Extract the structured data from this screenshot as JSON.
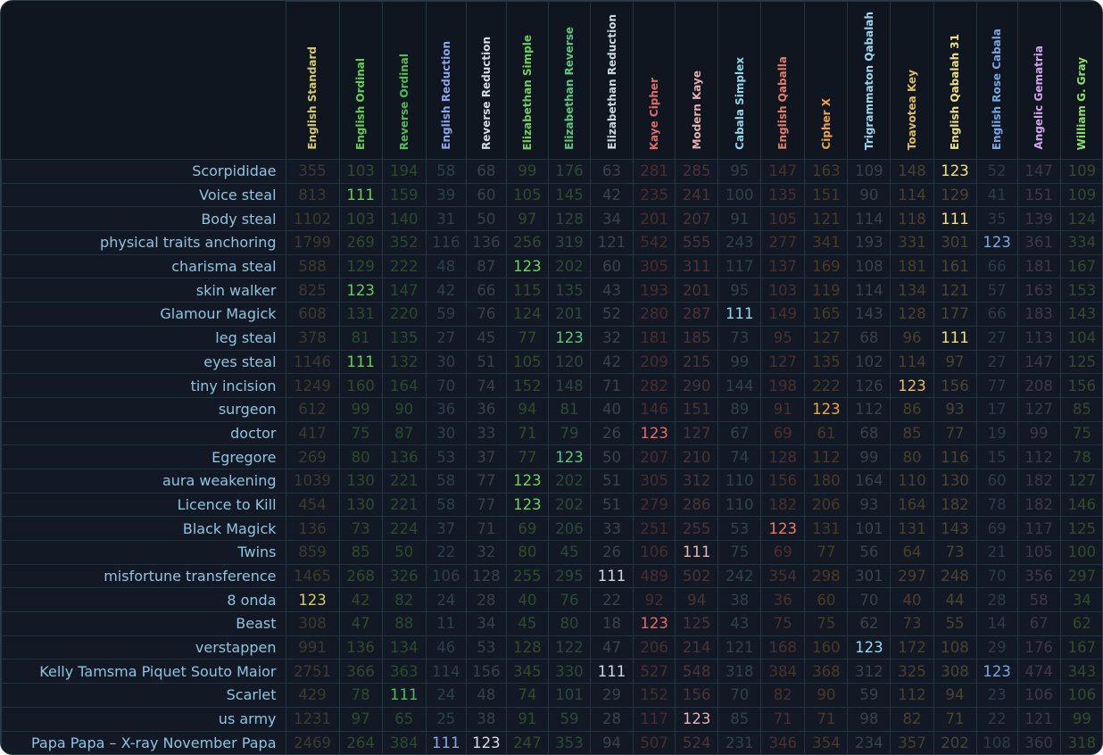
{
  "ciphers": [
    {
      "name": "English Standard",
      "color": "#d8cc63"
    },
    {
      "name": "English Ordinal",
      "color": "#62d24e"
    },
    {
      "name": "Reverse Ordinal",
      "color": "#4fbd59"
    },
    {
      "name": "English Reduction",
      "color": "#8ea5ee"
    },
    {
      "name": "Reverse Reduction",
      "color": "#d7dde6"
    },
    {
      "name": "Elizabethan Simple",
      "color": "#6fd05c"
    },
    {
      "name": "Elizabethan Reverse",
      "color": "#58c982"
    },
    {
      "name": "Elizabethan Reduction",
      "color": "#cdd8e2"
    },
    {
      "name": "Kaye Cipher",
      "color": "#e26a6a"
    },
    {
      "name": "Modern Kaye",
      "color": "#e6b0b0"
    },
    {
      "name": "Cabala Simplex",
      "color": "#8fd7f0"
    },
    {
      "name": "English Qaballa",
      "color": "#e57c66"
    },
    {
      "name": "Cipher X",
      "color": "#f0a640"
    },
    {
      "name": "Trigrammaton Qabalah",
      "color": "#9ad8f0"
    },
    {
      "name": "Toavotea Key",
      "color": "#e2bd62"
    },
    {
      "name": "English Qabalah 31",
      "color": "#f1e07d"
    },
    {
      "name": "English Rose Cabala",
      "color": "#78a7e6"
    },
    {
      "name": "Angelic Gematria",
      "color": "#d7a3f0"
    },
    {
      "name": "William G. Gray",
      "color": "#8be06c"
    }
  ],
  "rows": [
    {
      "label": "Scorpididae",
      "values": [
        355,
        103,
        194,
        58,
        68,
        99,
        176,
        63,
        281,
        285,
        95,
        147,
        163,
        109,
        148,
        123,
        52,
        147,
        109
      ]
    },
    {
      "label": "Voice steal",
      "values": [
        813,
        111,
        159,
        39,
        60,
        105,
        145,
        42,
        235,
        241,
        100,
        135,
        151,
        90,
        114,
        129,
        41,
        151,
        109
      ]
    },
    {
      "label": "Body steal",
      "values": [
        1102,
        103,
        140,
        31,
        50,
        97,
        128,
        34,
        201,
        207,
        91,
        105,
        121,
        114,
        118,
        111,
        35,
        139,
        124
      ]
    },
    {
      "label": "physical traits anchoring",
      "values": [
        1799,
        269,
        352,
        116,
        136,
        256,
        319,
        121,
        542,
        555,
        243,
        277,
        341,
        193,
        331,
        301,
        123,
        361,
        334
      ]
    },
    {
      "label": "charisma steal",
      "values": [
        588,
        129,
        222,
        48,
        87,
        123,
        202,
        60,
        305,
        311,
        117,
        137,
        169,
        108,
        181,
        161,
        66,
        181,
        167
      ]
    },
    {
      "label": "skin walker",
      "values": [
        825,
        123,
        147,
        42,
        66,
        115,
        135,
        43,
        193,
        201,
        95,
        103,
        119,
        114,
        134,
        121,
        57,
        163,
        153
      ]
    },
    {
      "label": "Glamour Magick",
      "values": [
        608,
        131,
        220,
        59,
        76,
        124,
        201,
        52,
        280,
        287,
        111,
        149,
        165,
        143,
        128,
        177,
        66,
        183,
        143
      ]
    },
    {
      "label": "leg steal",
      "values": [
        378,
        81,
        135,
        27,
        45,
        77,
        123,
        32,
        181,
        185,
        73,
        95,
        127,
        68,
        96,
        111,
        27,
        113,
        104
      ]
    },
    {
      "label": "eyes steal",
      "values": [
        1146,
        111,
        132,
        30,
        51,
        105,
        120,
        42,
        209,
        215,
        99,
        127,
        135,
        102,
        114,
        97,
        27,
        147,
        125
      ]
    },
    {
      "label": "tiny incision",
      "values": [
        1249,
        160,
        164,
        70,
        74,
        152,
        148,
        71,
        282,
        290,
        144,
        198,
        222,
        126,
        123,
        156,
        77,
        208,
        156
      ]
    },
    {
      "label": "surgeon",
      "values": [
        612,
        99,
        90,
        36,
        36,
        94,
        81,
        40,
        146,
        151,
        89,
        91,
        123,
        112,
        86,
        93,
        17,
        127,
        85
      ]
    },
    {
      "label": "doctor",
      "values": [
        417,
        75,
        87,
        30,
        33,
        71,
        79,
        26,
        123,
        127,
        67,
        69,
        61,
        68,
        85,
        77,
        19,
        99,
        75
      ]
    },
    {
      "label": "Egregore",
      "values": [
        269,
        80,
        136,
        53,
        37,
        77,
        123,
        50,
        207,
        210,
        74,
        128,
        112,
        99,
        80,
        116,
        15,
        112,
        78
      ]
    },
    {
      "label": "aura weakening",
      "values": [
        1039,
        130,
        221,
        58,
        77,
        123,
        202,
        51,
        305,
        312,
        110,
        156,
        180,
        164,
        110,
        130,
        60,
        182,
        127
      ]
    },
    {
      "label": "Licence to Kill",
      "values": [
        454,
        130,
        221,
        58,
        77,
        123,
        202,
        51,
        279,
        286,
        110,
        182,
        206,
        93,
        164,
        182,
        78,
        182,
        146
      ]
    },
    {
      "label": "Black Magick",
      "values": [
        136,
        73,
        224,
        37,
        71,
        69,
        206,
        33,
        251,
        255,
        53,
        123,
        131,
        101,
        131,
        143,
        69,
        117,
        125
      ]
    },
    {
      "label": "Twins",
      "values": [
        859,
        85,
        50,
        22,
        32,
        80,
        45,
        26,
        106,
        111,
        75,
        69,
        77,
        56,
        64,
        73,
        21,
        105,
        100
      ]
    },
    {
      "label": "misfortune transference",
      "values": [
        1465,
        268,
        326,
        106,
        128,
        255,
        295,
        111,
        489,
        502,
        242,
        354,
        298,
        301,
        297,
        248,
        70,
        356,
        297
      ]
    },
    {
      "label": "8 onda",
      "values": [
        123,
        42,
        82,
        24,
        28,
        40,
        76,
        22,
        92,
        94,
        38,
        36,
        60,
        70,
        40,
        44,
        28,
        58,
        34
      ]
    },
    {
      "label": "Beast",
      "values": [
        308,
        47,
        88,
        11,
        34,
        45,
        80,
        18,
        123,
        125,
        43,
        75,
        75,
        62,
        73,
        55,
        14,
        67,
        62
      ]
    },
    {
      "label": "verstappen",
      "values": [
        991,
        136,
        134,
        46,
        53,
        128,
        122,
        47,
        206,
        214,
        121,
        168,
        160,
        123,
        172,
        108,
        29,
        176,
        167
      ]
    },
    {
      "label": "Kelly Tamsma Piquet Souto Maior",
      "values": [
        2751,
        366,
        363,
        114,
        156,
        345,
        330,
        111,
        527,
        548,
        318,
        384,
        368,
        312,
        325,
        308,
        123,
        474,
        343
      ]
    },
    {
      "label": "Scarlet",
      "values": [
        429,
        78,
        111,
        24,
        48,
        74,
        101,
        29,
        152,
        156,
        70,
        82,
        90,
        59,
        112,
        94,
        23,
        106,
        106
      ]
    },
    {
      "label": "us army",
      "values": [
        1231,
        97,
        65,
        25,
        38,
        91,
        59,
        28,
        117,
        123,
        85,
        71,
        71,
        98,
        82,
        71,
        22,
        121,
        99
      ]
    },
    {
      "label": "Papa Papa – X-ray November Papa",
      "values": [
        2469,
        264,
        384,
        111,
        123,
        247,
        353,
        94,
        507,
        524,
        231,
        346,
        354,
        234,
        357,
        202,
        108,
        360,
        318
      ]
    }
  ],
  "highlight_values": [
    111,
    123
  ],
  "cell_colors": {
    "default": "#3a3a31",
    "dim": [
      "#3b3a2c",
      "#2f4a2a",
      "#2a4a2e",
      "#2d3f4f",
      "#38404a",
      "#314a2a",
      "#2b4a35",
      "#3a434b",
      "#4a2c2c",
      "#4a3434",
      "#2f424a",
      "#4a2f2a",
      "#4a3a22",
      "#37434a",
      "#4a3f2a",
      "#4a4430",
      "#2c3a4a",
      "#40364a",
      "#334a2a"
    ]
  }
}
